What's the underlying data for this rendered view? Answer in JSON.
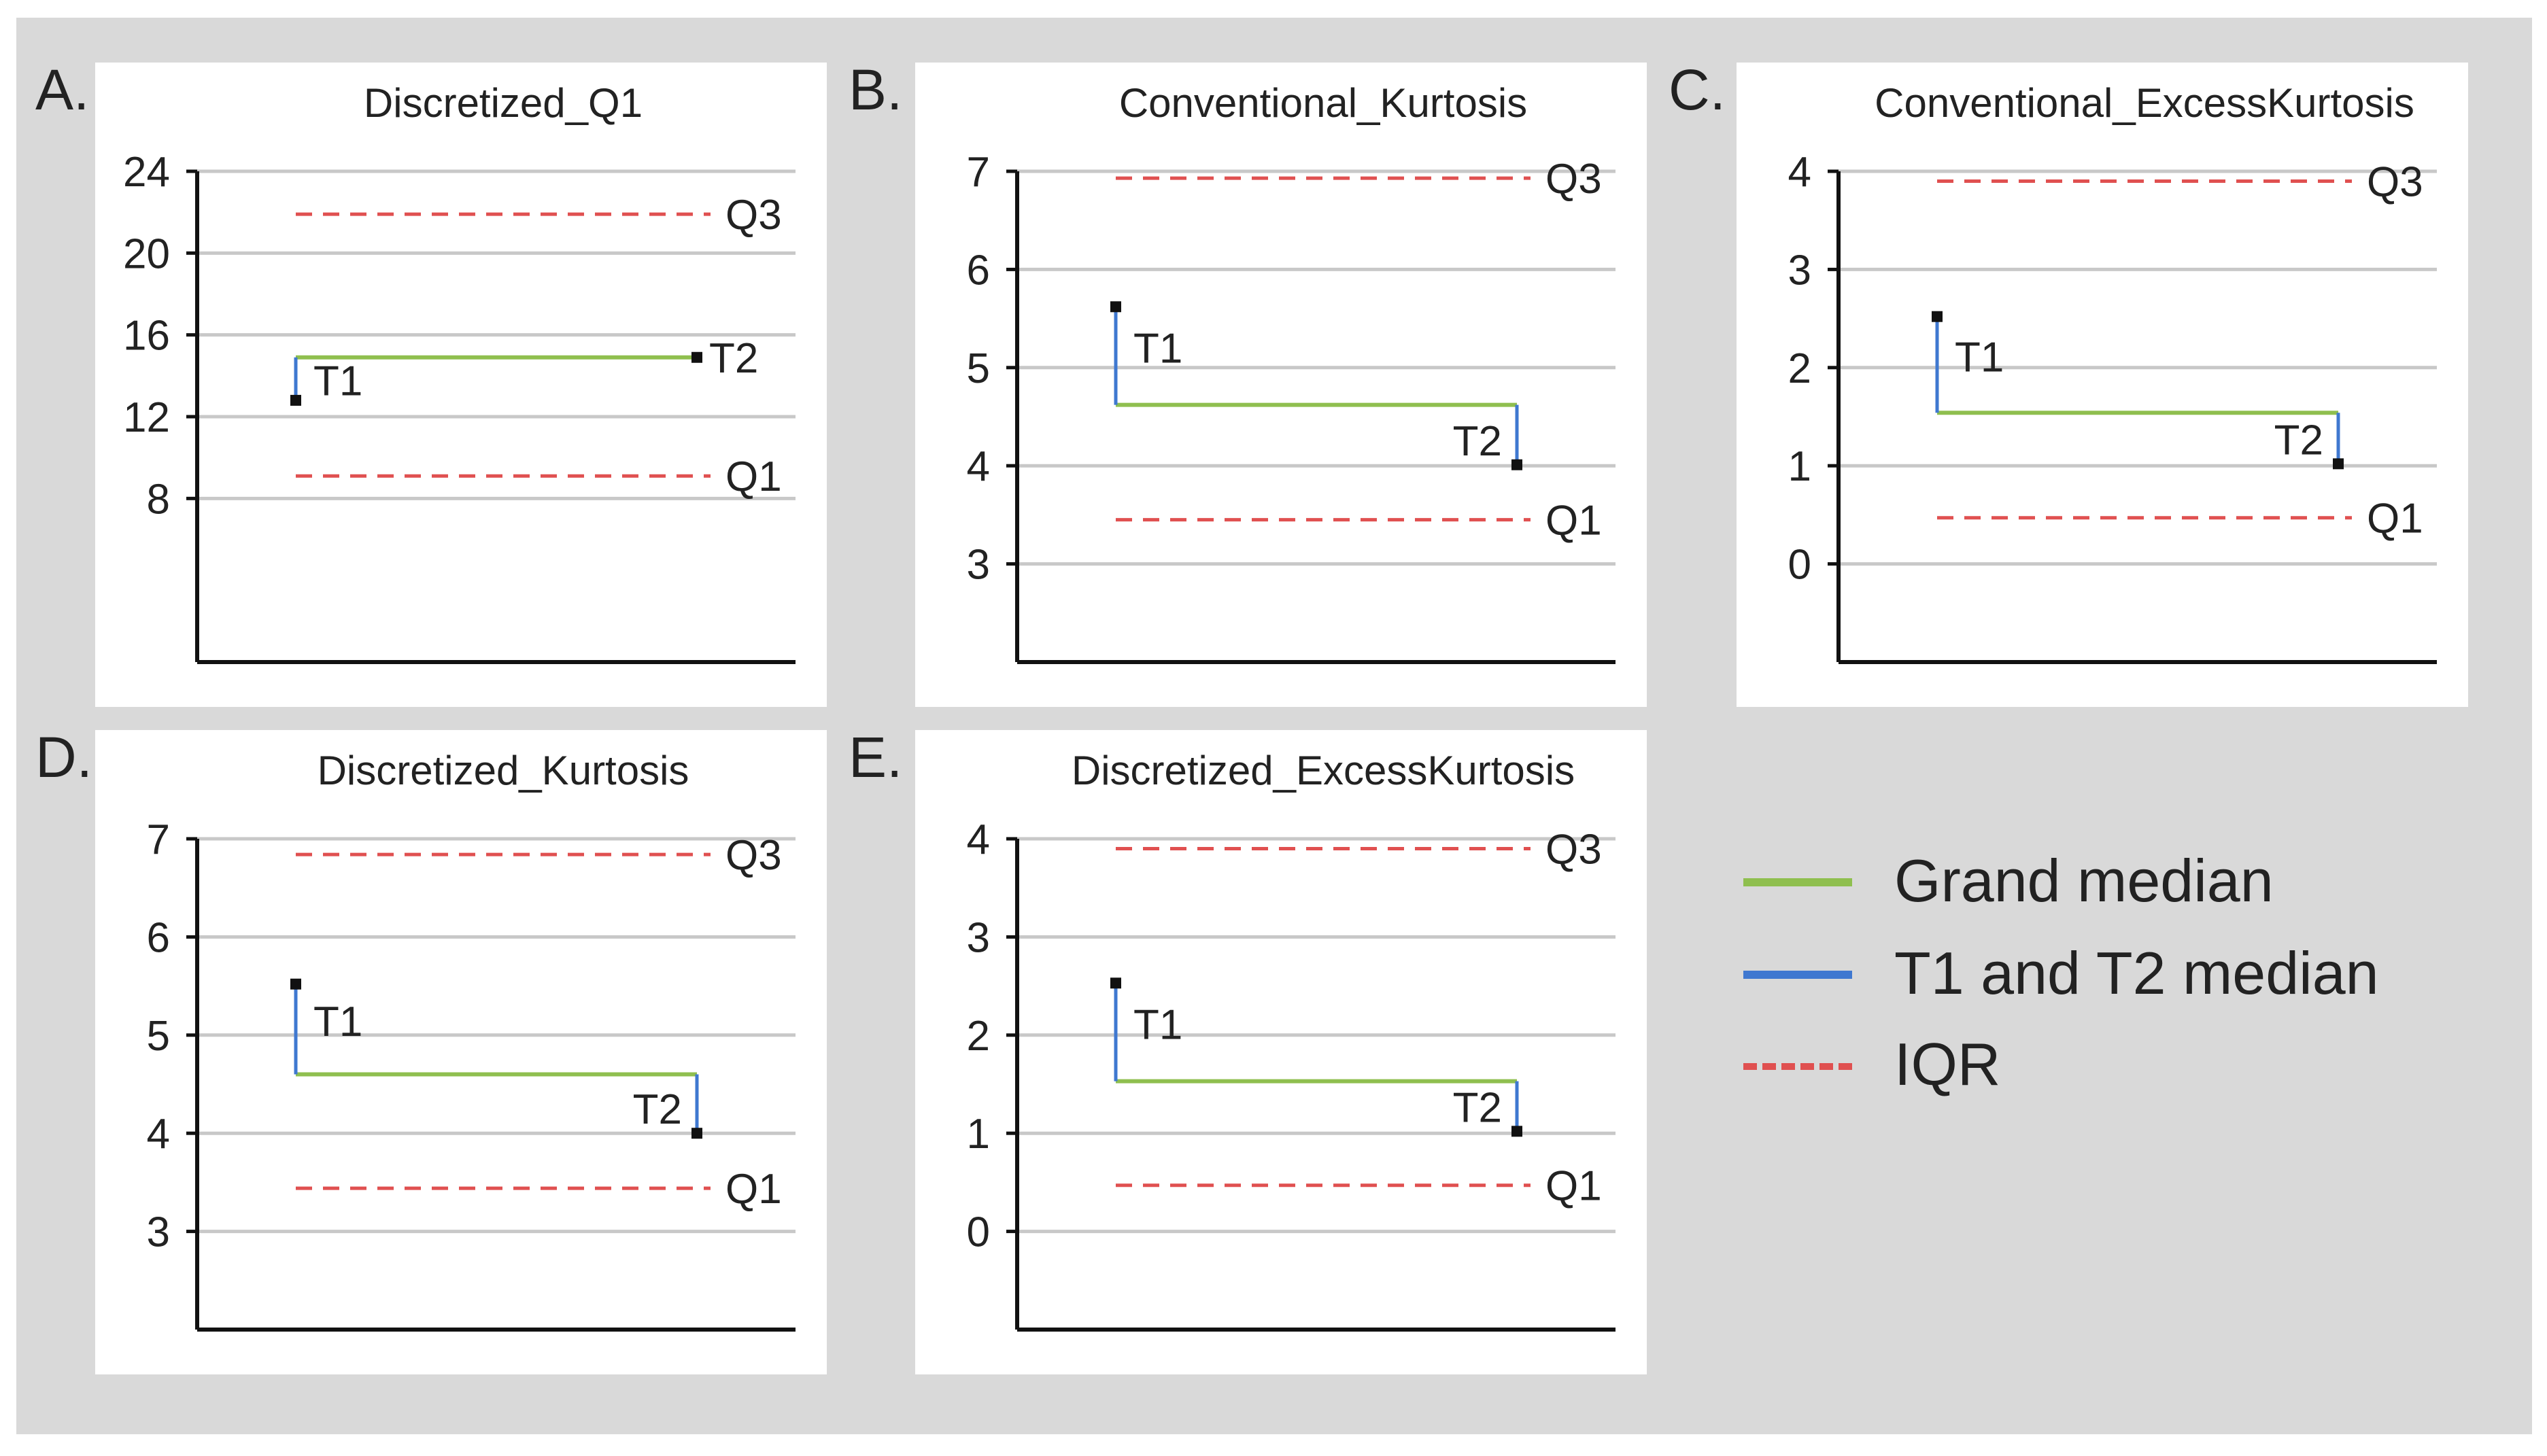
{
  "figure": {
    "panel_letters": [
      "A.",
      "B.",
      "C.",
      "D.",
      "E."
    ]
  },
  "legend": {
    "grand_median": "Grand median",
    "t1_t2_median": "T1 and T2 median",
    "iqr": "IQR"
  },
  "colors": {
    "grand_median": "#8fbf4f",
    "t_median": "#3f78d0",
    "iqr": "#e05050",
    "gridline": "#c8c8c8",
    "axis": "#111111",
    "text": "#222222"
  },
  "chart_data": [
    {
      "type": "line",
      "panel": "A.",
      "title": "Discretized_Q1",
      "ylim": [
        0,
        24
      ],
      "yticks": [
        8,
        12,
        16,
        20,
        24
      ],
      "grand_median": 14.9,
      "t1": 12.8,
      "t2": 14.9,
      "q1": 9.1,
      "q3": 21.9,
      "labels": {
        "t1": "T1",
        "t2": "T2",
        "q1": "Q1",
        "q3": "Q3"
      }
    },
    {
      "type": "line",
      "panel": "B.",
      "title": "Conventional_Kurtosis",
      "ylim": [
        2,
        7
      ],
      "yticks": [
        3,
        4,
        5,
        6,
        7
      ],
      "grand_median": 4.62,
      "t1": 5.62,
      "t2": 4.01,
      "q1": 3.45,
      "q3": 6.93,
      "labels": {
        "t1": "T1",
        "t2": "T2",
        "q1": "Q1",
        "q3": "Q3"
      }
    },
    {
      "type": "line",
      "panel": "C.",
      "title": "Conventional_ExcessKurtosis",
      "ylim": [
        -1,
        4
      ],
      "yticks": [
        0,
        1,
        2,
        3,
        4
      ],
      "grand_median": 1.54,
      "t1": 2.52,
      "t2": 1.02,
      "q1": 0.47,
      "q3": 3.9,
      "labels": {
        "t1": "T1",
        "t2": "T2",
        "q1": "Q1",
        "q3": "Q3"
      }
    },
    {
      "type": "line",
      "panel": "D.",
      "title": "Discretized_Kurtosis",
      "ylim": [
        2,
        7
      ],
      "yticks": [
        3,
        4,
        5,
        6,
        7
      ],
      "grand_median": 4.6,
      "t1": 5.52,
      "t2": 4.0,
      "q1": 3.44,
      "q3": 6.84,
      "labels": {
        "t1": "T1",
        "t2": "T2",
        "q1": "Q1",
        "q3": "Q3"
      }
    },
    {
      "type": "line",
      "panel": "E.",
      "title": "Discretized_ExcessKurtosis",
      "ylim": [
        -1,
        4
      ],
      "yticks": [
        0,
        1,
        2,
        3,
        4
      ],
      "grand_median": 1.53,
      "t1": 2.53,
      "t2": 1.02,
      "q1": 0.47,
      "q3": 3.9,
      "labels": {
        "t1": "T1",
        "t2": "T2",
        "q1": "Q1",
        "q3": "Q3"
      }
    }
  ]
}
